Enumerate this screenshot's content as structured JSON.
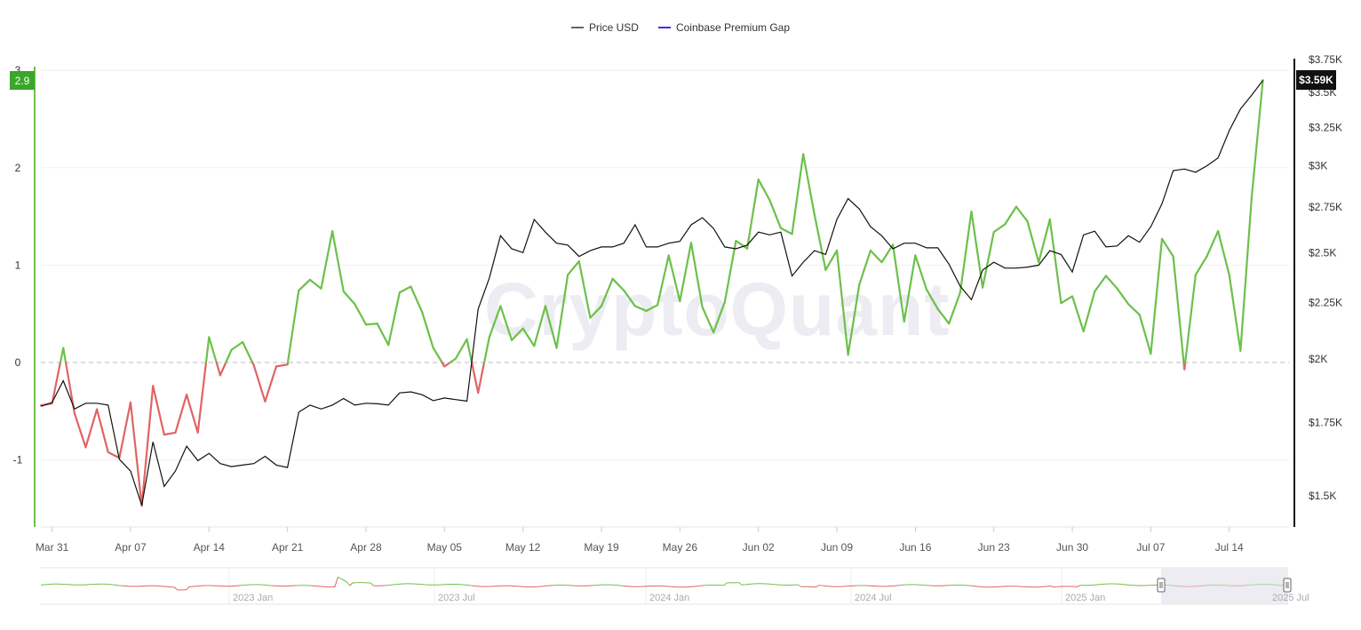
{
  "legend": {
    "items": [
      {
        "label": "Price USD",
        "color": "#666666"
      },
      {
        "label": "Coinbase Premium Gap",
        "color": "#4b2fd6"
      }
    ]
  },
  "watermark": "CryptoQuant",
  "current": {
    "left_badge": "2.9",
    "right_badge": "$3.59K"
  },
  "colors": {
    "positive": "#6cc04a",
    "negative": "#e06464",
    "price": "#111111",
    "left_axis": "#6cc04a",
    "right_axis": "#111111",
    "badge_left_bg": "#3aa62a",
    "badge_right_bg": "#111111"
  },
  "axes": {
    "left_ticks": [
      "3",
      "2",
      "1",
      "0",
      "-1"
    ],
    "right_ticks": [
      "$3.75K",
      "$3.5K",
      "$3.25K",
      "$3K",
      "$2.75K",
      "$2.5K",
      "$2.25K",
      "$2K",
      "$1.75K",
      "$1.5K"
    ],
    "x_ticks": [
      "Mar 31",
      "Apr 07",
      "Apr 14",
      "Apr 21",
      "Apr 28",
      "May 05",
      "May 12",
      "May 19",
      "May 26",
      "Jun 02",
      "Jun 09",
      "Jun 16",
      "Jun 23",
      "Jun 30",
      "Jul 07",
      "Jul 14"
    ]
  },
  "navigator": {
    "labels": [
      "2023 Jan",
      "2023 Jul",
      "2024 Jan",
      "2024 Jul",
      "2025 Jan",
      "2025 Jul"
    ]
  },
  "chart_data": {
    "type": "line",
    "title": "",
    "xlabel": "",
    "ylabel_left": "Coinbase Premium Gap",
    "ylabel_right": "Price USD",
    "ylim_left": [
      -1.7,
      3.0
    ],
    "ylim_right_log": [
      1400,
      3750
    ],
    "grid": true,
    "legend_position": "top",
    "x_start": "Mar 30",
    "x_end": "Jul 20",
    "baseline_dashed_at": 0,
    "series": [
      {
        "name": "Coinbase Premium Gap",
        "axis": "left",
        "values": [
          -0.44,
          -0.42,
          0.15,
          -0.52,
          -0.87,
          -0.48,
          -0.92,
          -0.98,
          -0.41,
          -1.47,
          -0.24,
          -0.74,
          -0.72,
          -0.33,
          -0.72,
          0.26,
          -0.13,
          0.13,
          0.21,
          -0.03,
          -0.4,
          -0.04,
          -0.02,
          0.74,
          0.85,
          0.76,
          1.35,
          0.73,
          0.6,
          0.39,
          0.4,
          0.18,
          0.72,
          0.78,
          0.52,
          0.15,
          -0.04,
          0.04,
          0.24,
          -0.31,
          0.26,
          0.58,
          0.23,
          0.35,
          0.17,
          0.58,
          0.15,
          0.9,
          1.04,
          0.46,
          0.58,
          0.86,
          0.74,
          0.58,
          0.53,
          0.59,
          1.1,
          0.63,
          1.23,
          0.57,
          0.31,
          0.62,
          1.25,
          1.17,
          1.88,
          1.67,
          1.38,
          1.32,
          2.14,
          1.52,
          0.95,
          1.15,
          0.08,
          0.8,
          1.15,
          1.03,
          1.21,
          0.42,
          1.1,
          0.75,
          0.55,
          0.4,
          0.72,
          1.55,
          0.77,
          1.34,
          1.42,
          1.6,
          1.45,
          1.03,
          1.47,
          0.61,
          0.68,
          0.32,
          0.73,
          0.89,
          0.76,
          0.6,
          0.49,
          0.09,
          1.27,
          1.09,
          -0.07,
          0.9,
          1.09,
          1.35,
          0.9,
          0.12,
          1.7,
          2.9
        ]
      },
      {
        "name": "Price USD",
        "axis": "right",
        "values": [
          1810,
          1825,
          1910,
          1800,
          1822,
          1822,
          1815,
          1620,
          1580,
          1470,
          1680,
          1530,
          1580,
          1665,
          1615,
          1640,
          1605,
          1595,
          1600,
          1605,
          1630,
          1600,
          1592,
          1788,
          1815,
          1800,
          1815,
          1840,
          1815,
          1822,
          1820,
          1815,
          1862,
          1866,
          1855,
          1832,
          1842,
          1836,
          1830,
          2220,
          2370,
          2590,
          2520,
          2500,
          2680,
          2610,
          2550,
          2540,
          2480,
          2510,
          2530,
          2530,
          2550,
          2650,
          2530,
          2530,
          2550,
          2560,
          2650,
          2690,
          2630,
          2530,
          2520,
          2540,
          2610,
          2595,
          2610,
          2380,
          2450,
          2510,
          2490,
          2680,
          2800,
          2740,
          2640,
          2590,
          2520,
          2550,
          2550,
          2525,
          2525,
          2440,
          2330,
          2265,
          2410,
          2450,
          2420,
          2420,
          2425,
          2435,
          2510,
          2490,
          2400,
          2595,
          2615,
          2530,
          2535,
          2590,
          2555,
          2640,
          2770,
          2970,
          2980,
          2960,
          3000,
          3050,
          3230,
          3380,
          3480,
          3590
        ]
      }
    ]
  }
}
